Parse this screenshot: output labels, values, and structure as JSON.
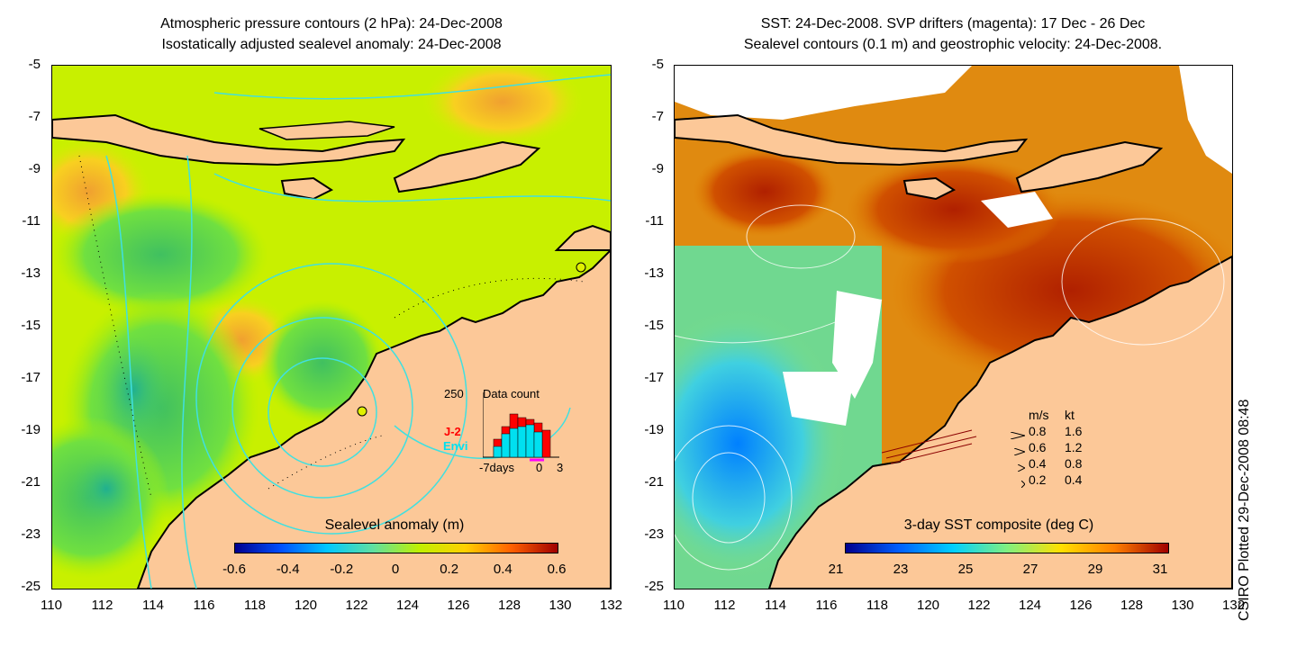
{
  "left_panel": {
    "title_line1": "Atmospheric pressure contours (2 hPa): 24-Dec-2008",
    "title_line2": "Isostatically adjusted sealevel anomaly: 24-Dec-2008",
    "colorbar": {
      "title": "Sealevel anomaly (m)",
      "tick_labels": [
        "-0.6",
        "-0.4",
        "-0.2",
        "0",
        "0.2",
        "0.4",
        "0.6"
      ],
      "colors": [
        "#00008f",
        "#0050ff",
        "#00c8ff",
        "#60e0a0",
        "#c0f000",
        "#ffd000",
        "#ff6000",
        "#a00000"
      ]
    },
    "inset": {
      "max_label": "250",
      "title": "Data count",
      "series_j2": "J-2",
      "series_envi": "Envi",
      "axis_left": "-7days",
      "axis_mid": "0",
      "axis_right": "3",
      "j2_color": "#ff0000",
      "envi_color": "#00e0f0"
    }
  },
  "right_panel": {
    "title_line1": "SST: 24-Dec-2008. SVP drifters (magenta): 17 Dec - 26 Dec",
    "title_line2": "Sealevel contours (0.1 m) and geostrophic velocity: 24-Dec-2008.",
    "colorbar": {
      "title": "3-day SST composite (deg C)",
      "tick_labels": [
        "21",
        "23",
        "25",
        "27",
        "29",
        "31"
      ],
      "colors": [
        "#00008f",
        "#0060ff",
        "#00d0ff",
        "#80f080",
        "#ffe000",
        "#ff8000",
        "#a00000"
      ]
    },
    "velocity_legend": {
      "header_ms": "m/s",
      "header_kt": "kt",
      "rows": [
        {
          "ms": "0.8",
          "kt": "1.6"
        },
        {
          "ms": "0.6",
          "kt": "1.2"
        },
        {
          "ms": "0.4",
          "kt": "0.8"
        },
        {
          "ms": "0.2",
          "kt": "0.4"
        }
      ]
    }
  },
  "axes": {
    "y_labels": [
      "-5",
      "-7",
      "-9",
      "-11",
      "-13",
      "-15",
      "-17",
      "-19",
      "-21",
      "-23",
      "-25"
    ],
    "x_labels": [
      "110",
      "112",
      "114",
      "116",
      "118",
      "120",
      "122",
      "124",
      "126",
      "128",
      "130",
      "132"
    ]
  },
  "credit": "CSIRO Plotted 29-Dec-2008 08:48",
  "colors": {
    "land": "#fcc898",
    "ocean_base": "#c8f000",
    "contour": "#40e0e0"
  }
}
